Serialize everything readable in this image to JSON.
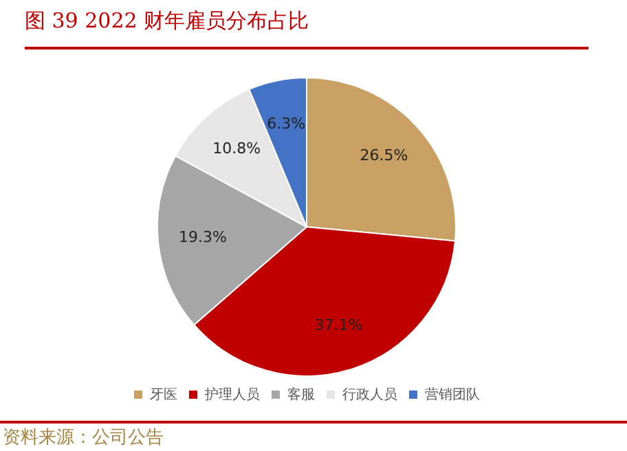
{
  "chart_data": {
    "type": "pie",
    "title": "图 39 2022 财年雇员分布占比",
    "categories": [
      "牙医",
      "护理人员",
      "客服",
      "行政人员",
      "营销团队"
    ],
    "values": [
      26.5,
      37.1,
      19.3,
      10.8,
      6.3
    ],
    "colors": [
      "#c9a063",
      "#c00000",
      "#a6a6a6",
      "#e7e6e6",
      "#4472c4"
    ],
    "value_labels": [
      "26.5%",
      "37.1%",
      "19.3%",
      "10.8%",
      "6.3%"
    ],
    "legend": "bottom",
    "annotations": [
      "资料来源：公司公告"
    ]
  }
}
